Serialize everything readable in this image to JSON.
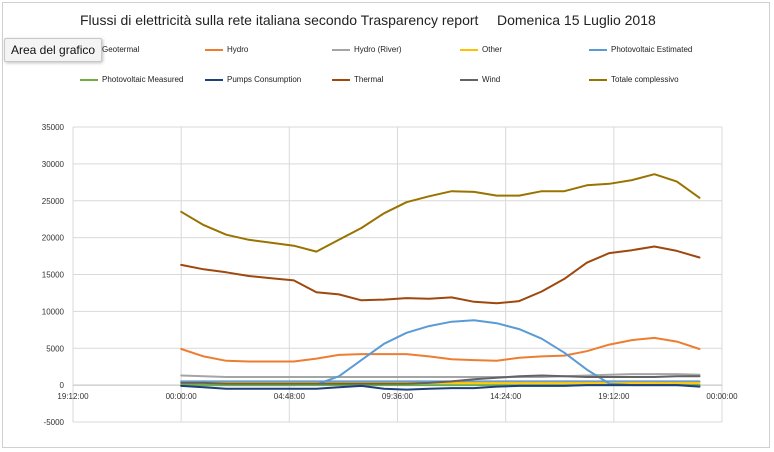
{
  "chart_data": {
    "type": "line",
    "title": "Flussi di elettricità sulla rete italiana secondo Trasparency report",
    "subtitle": "Domenica 15 Luglio 2018",
    "tooltip": "Area del grafico",
    "xlabel": "",
    "ylabel": "",
    "ylim": [
      -5000,
      35000
    ],
    "yticks": [
      -5000,
      0,
      5000,
      10000,
      15000,
      20000,
      25000,
      30000,
      35000
    ],
    "ytick_labels": [
      "-5000",
      "0",
      "5000",
      "10000",
      "15000",
      "20000",
      "25000",
      "30000",
      "35000"
    ],
    "xlim": [
      "14/07/2018 19:12",
      "16/07/2018 00:00"
    ],
    "xtick_labels": [
      "19:12:00",
      "00:00:00",
      "04:48:00",
      "09:36:00",
      "14:24:00",
      "19:12:00",
      "00:00:00"
    ],
    "grid": true,
    "legend_position": "top",
    "x": [
      "00:00",
      "01:00",
      "02:00",
      "03:00",
      "04:00",
      "05:00",
      "06:00",
      "07:00",
      "08:00",
      "09:00",
      "10:00",
      "11:00",
      "12:00",
      "13:00",
      "14:00",
      "15:00",
      "16:00",
      "17:00",
      "18:00",
      "19:00",
      "20:00",
      "21:00",
      "22:00",
      "23:00"
    ],
    "series": [
      {
        "name": "Geotermal",
        "color": "#5b9bd5",
        "values": [
          500,
          500,
          500,
          500,
          500,
          500,
          500,
          500,
          500,
          500,
          500,
          500,
          500,
          500,
          500,
          500,
          500,
          500,
          500,
          500,
          500,
          500,
          500,
          500
        ]
      },
      {
        "name": "Hydro",
        "color": "#ed7d31",
        "values": [
          4900,
          3900,
          3300,
          3200,
          3200,
          3200,
          3600,
          4100,
          4200,
          4200,
          4200,
          3900,
          3500,
          3400,
          3300,
          3700,
          3900,
          4000,
          4600,
          5500,
          6100,
          6400,
          5900,
          4900
        ]
      },
      {
        "name": "Hydro (River)",
        "color": "#a5a5a5",
        "values": [
          1300,
          1200,
          1100,
          1100,
          1100,
          1100,
          1100,
          1100,
          1100,
          1100,
          1100,
          1100,
          1100,
          1100,
          1100,
          1100,
          1100,
          1200,
          1300,
          1400,
          1500,
          1500,
          1500,
          1400
        ]
      },
      {
        "name": "Other",
        "color": "#ffc000",
        "values": [
          300,
          300,
          300,
          300,
          300,
          300,
          300,
          300,
          300,
          300,
          300,
          300,
          300,
          300,
          300,
          300,
          300,
          300,
          300,
          300,
          300,
          300,
          300,
          300
        ]
      },
      {
        "name": "Photovoltaic Estimated",
        "color": "#5b9bd5",
        "values": [
          0,
          0,
          0,
          0,
          0,
          0,
          100,
          1200,
          3400,
          5600,
          7100,
          8000,
          8600,
          8800,
          8400,
          7600,
          6300,
          4400,
          2100,
          200,
          0,
          0,
          0,
          0
        ]
      },
      {
        "name": "Photovoltaic Measured",
        "color": "#70ad47",
        "values": [
          0,
          0,
          0,
          0,
          0,
          0,
          0,
          0,
          0,
          0,
          0,
          0,
          0,
          0,
          0,
          0,
          0,
          0,
          0,
          0,
          0,
          0,
          0,
          0
        ]
      },
      {
        "name": "Pumps Consumption",
        "color": "#1f3f7a",
        "values": [
          -100,
          -300,
          -500,
          -500,
          -500,
          -500,
          -500,
          -300,
          -100,
          -500,
          -600,
          -500,
          -400,
          -400,
          -200,
          -100,
          -100,
          -100,
          0,
          0,
          0,
          0,
          0,
          -200
        ]
      },
      {
        "name": "Thermal",
        "color": "#9e480e",
        "values": [
          16300,
          15700,
          15300,
          14800,
          14500,
          14200,
          12600,
          12300,
          11500,
          11600,
          11800,
          11700,
          11900,
          11300,
          11100,
          11400,
          12700,
          14400,
          16600,
          17900,
          18300,
          18800,
          18200,
          17300
        ]
      },
      {
        "name": "Wind",
        "color": "#636363",
        "values": [
          300,
          300,
          200,
          200,
          200,
          200,
          200,
          200,
          200,
          200,
          200,
          300,
          500,
          800,
          1000,
          1200,
          1300,
          1200,
          1100,
          1100,
          1100,
          1100,
          1200,
          1200
        ]
      },
      {
        "name": "Totale complessivo",
        "color": "#997300",
        "values": [
          23500,
          21700,
          20400,
          19700,
          19300,
          18900,
          18100,
          19700,
          21300,
          23300,
          24800,
          25600,
          26300,
          26200,
          25700,
          25700,
          26300,
          26300,
          27100,
          27300,
          27800,
          28600,
          27600,
          25400
        ]
      }
    ]
  }
}
